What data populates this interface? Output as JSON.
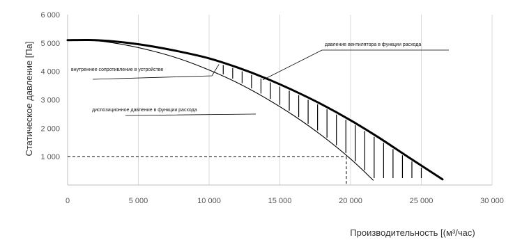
{
  "chart_data": {
    "type": "line",
    "xlabel": "Производительность [(м³/час)",
    "ylabel": "Статическое давление [Па]",
    "xlim": [
      0,
      30000
    ],
    "ylim": [
      0,
      6000
    ],
    "grid": "vertical",
    "x_ticks": [
      0,
      5000,
      10000,
      15000,
      20000,
      25000,
      30000
    ],
    "x_tick_labels": [
      "0",
      "5 000",
      "10 000",
      "15 000",
      "20 000",
      "25 000",
      "30 000"
    ],
    "y_ticks": [
      1000,
      2000,
      3000,
      4000,
      5000,
      6000
    ],
    "y_tick_labels": [
      "1 000",
      "2 000",
      "3 000",
      "4 000",
      "5 000",
      "6 000"
    ],
    "series": [
      {
        "name": "давление вентилятора в функции расхода",
        "style": "bold",
        "x": [
          0,
          2000,
          4000,
          6000,
          8000,
          10000,
          12000,
          14000,
          16000,
          18000,
          20000,
          22000,
          24000,
          26500
        ],
        "y": [
          5100,
          5100,
          5020,
          4880,
          4690,
          4460,
          4140,
          3760,
          3320,
          2830,
          2280,
          1670,
          1010,
          200
        ]
      },
      {
        "name": "диспозиционное давление в функции расхода",
        "style": "thin",
        "x": [
          0,
          2000,
          4000,
          6000,
          8000,
          10000,
          12000,
          14000,
          16000,
          18000,
          20000,
          21600
        ],
        "y": [
          5100,
          5080,
          4940,
          4720,
          4430,
          4050,
          3600,
          3060,
          2440,
          1730,
          920,
          170
        ]
      }
    ],
    "hatched_region": {
      "label": "внутреннее сопротивление в устройстве",
      "between": [
        "давление вентилятора в функции расхода",
        "диспозиционное давление в функции расхода"
      ],
      "x_from": 11000,
      "x_to": 25000,
      "hatch_count": 22
    },
    "reference_point": {
      "x": 19700,
      "y": 1000
    },
    "annotations": [
      {
        "text": "давление вентилятора в функции расхода",
        "x": 13800,
        "y": 3700
      },
      {
        "text": "внутреннее сопротивление в устройстве",
        "x": 10700,
        "y": 4250
      },
      {
        "text": "диспозиционное давление в функции расхода",
        "x": 13300,
        "y": 2500
      }
    ]
  }
}
